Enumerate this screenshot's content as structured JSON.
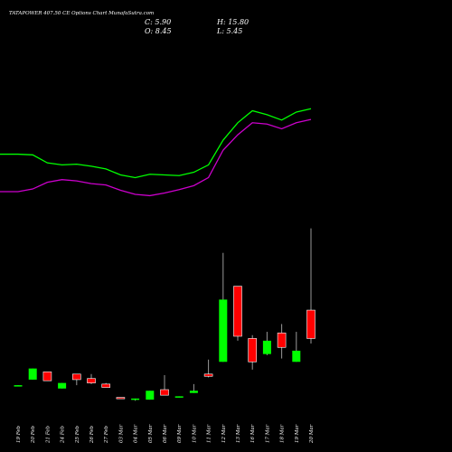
{
  "header": {
    "title": "TATAPOWER 407.50 CE Options  Chart MunafaSutra.com",
    "close": "C: 5.90",
    "high": "H: 15.80",
    "open": "O: 8.45",
    "low": "L: 5.45"
  },
  "chart_data": {
    "type": "candlestick",
    "colors": {
      "background": "#000000",
      "up": "#00ff00",
      "down": "#ff0000",
      "line_upper": "#00ff00",
      "line_lower": "#cc00cc",
      "wick": "#999999",
      "text": "#ffffff"
    },
    "categories": [
      "19 Feb",
      "20 Feb",
      "21 Feb",
      "24 Feb",
      "25 Feb",
      "26 Feb",
      "27 Feb",
      "03 Mar",
      "04 Mar",
      "05 Mar",
      "06 Mar",
      "09 Mar",
      "10 Mar",
      "11 Mar",
      "12 Mar",
      "13 Mar",
      "16 Mar",
      "17 Mar",
      "18 Mar",
      "19 Mar",
      "20 Mar"
    ],
    "candles": [
      {
        "o": 1.6,
        "h": 1.7,
        "l": 1.6,
        "c": 1.7
      },
      {
        "o": 2.2,
        "h": 3.2,
        "l": 2.2,
        "c": 3.2
      },
      {
        "o": 2.9,
        "h": 2.9,
        "l": 2.1,
        "c": 2.1
      },
      {
        "o": 1.4,
        "h": 1.9,
        "l": 1.4,
        "c": 1.9
      },
      {
        "o": 2.7,
        "h": 2.7,
        "l": 1.7,
        "c": 2.2
      },
      {
        "o": 2.3,
        "h": 2.7,
        "l": 1.8,
        "c": 1.9
      },
      {
        "o": 1.8,
        "h": 1.9,
        "l": 1.5,
        "c": 1.5
      },
      {
        "o": 0.6,
        "h": 0.6,
        "l": 0.5,
        "c": 0.5
      },
      {
        "o": 0.4,
        "h": 0.5,
        "l": 0.3,
        "c": 0.5
      },
      {
        "o": 0.4,
        "h": 1.2,
        "l": 0.4,
        "c": 1.2
      },
      {
        "o": 1.3,
        "h": 2.6,
        "l": 0.8,
        "c": 0.8
      },
      {
        "o": 0.6,
        "h": 0.7,
        "l": 0.6,
        "c": 0.7
      },
      {
        "o": 1.0,
        "h": 1.8,
        "l": 1.0,
        "c": 1.2
      },
      {
        "o": 2.7,
        "h": 4.0,
        "l": 2.4,
        "c": 2.5
      },
      {
        "o": 3.8,
        "h": 13.6,
        "l": 3.8,
        "c": 9.4
      },
      {
        "o": 10.6,
        "h": 10.6,
        "l": 5.7,
        "c": 6.1
      },
      {
        "o": 5.9,
        "h": 6.2,
        "l": 3.1,
        "c": 3.8
      },
      {
        "o": 4.5,
        "h": 6.5,
        "l": 4.4,
        "c": 5.7
      },
      {
        "o": 6.4,
        "h": 7.2,
        "l": 4.1,
        "c": 5.1
      },
      {
        "o": 3.8,
        "h": 6.5,
        "l": 3.8,
        "c": 4.8
      },
      {
        "o": 8.45,
        "h": 15.8,
        "l": 5.45,
        "c": 5.9
      }
    ],
    "line_upper": [
      15.6,
      15.5,
      14.3,
      14.0,
      14.1,
      13.8,
      13.4,
      12.5,
      12.1,
      12.6,
      12.5,
      12.4,
      12.9,
      14.0,
      17.7,
      20.3,
      22.1,
      21.5,
      20.7,
      21.9,
      22.4
    ],
    "line_lower": [
      10.0,
      10.4,
      11.4,
      11.8,
      11.6,
      11.2,
      11.0,
      10.2,
      9.6,
      9.4,
      9.8,
      10.3,
      10.9,
      12.1,
      16.2,
      18.5,
      20.3,
      20.1,
      19.4,
      20.3,
      20.8
    ]
  }
}
